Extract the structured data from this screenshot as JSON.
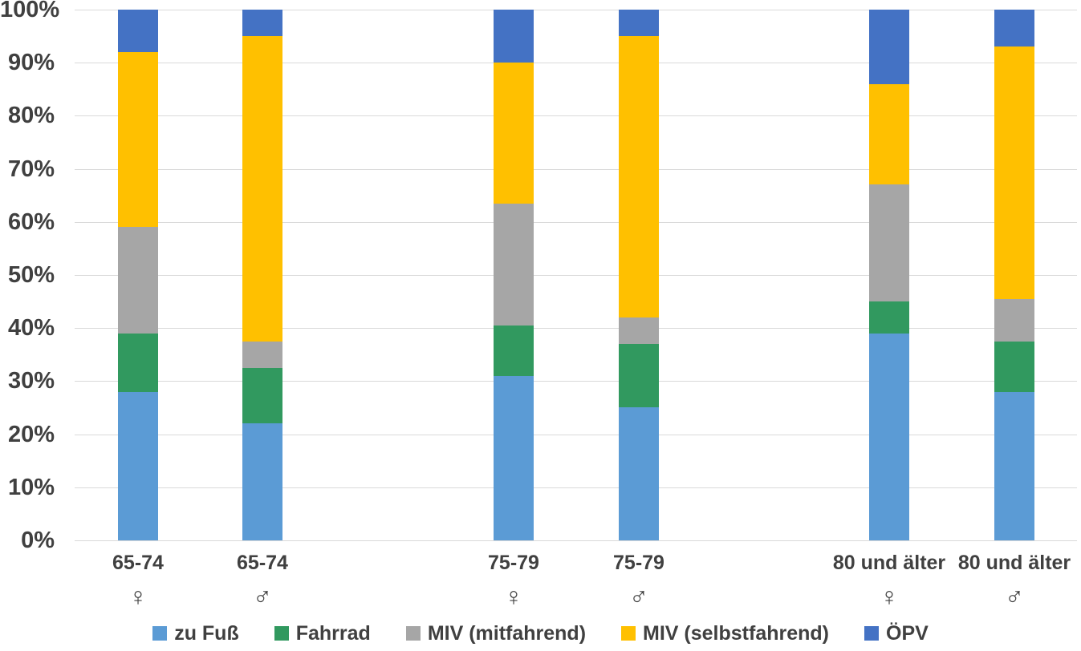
{
  "chart_data": {
    "type": "bar",
    "variant": "stacked-100-percent",
    "title": "",
    "xlabel": "",
    "ylabel": "",
    "grid": true,
    "legend_position": "bottom",
    "y_axis": {
      "min": 0,
      "max": 100,
      "tick_step": 10,
      "tick_labels": [
        "0%",
        "10%",
        "20%",
        "30%",
        "40%",
        "50%",
        "60%",
        "70%",
        "80%",
        "90%",
        "100%"
      ]
    },
    "categories": [
      {
        "age_label": "65-74",
        "gender": "female",
        "symbol": "♀"
      },
      {
        "age_label": "65-74",
        "gender": "male",
        "symbol": "♂"
      },
      {
        "age_label": "75-79",
        "gender": "female",
        "symbol": "♀"
      },
      {
        "age_label": "75-79",
        "gender": "male",
        "symbol": "♂"
      },
      {
        "age_label": "80 und älter",
        "gender": "female",
        "symbol": "♀"
      },
      {
        "age_label": "80 und älter",
        "gender": "male",
        "symbol": "♂"
      }
    ],
    "series": [
      {
        "name": "zu Fuß",
        "color": "#5B9BD5",
        "values": [
          28,
          22,
          31,
          25,
          39,
          28
        ]
      },
      {
        "name": "Fahrrad",
        "color": "#31995F",
        "values": [
          11,
          10.5,
          9.5,
          12,
          6,
          9.5
        ]
      },
      {
        "name": "MIV (mitfahrend)",
        "color": "#A6A6A6",
        "values": [
          20,
          5,
          23,
          5,
          22,
          8
        ]
      },
      {
        "name": "MIV (selbstfahrend)",
        "color": "#FFC000",
        "values": [
          33,
          57.5,
          26.5,
          53,
          19,
          47.5
        ]
      },
      {
        "name": "ÖPV",
        "color": "#4472C4",
        "values": [
          8,
          5,
          10,
          5,
          14,
          7
        ]
      }
    ]
  },
  "style_colors": {
    "gridline": "#d9d9d9",
    "text": "#404040",
    "background": "#ffffff"
  }
}
